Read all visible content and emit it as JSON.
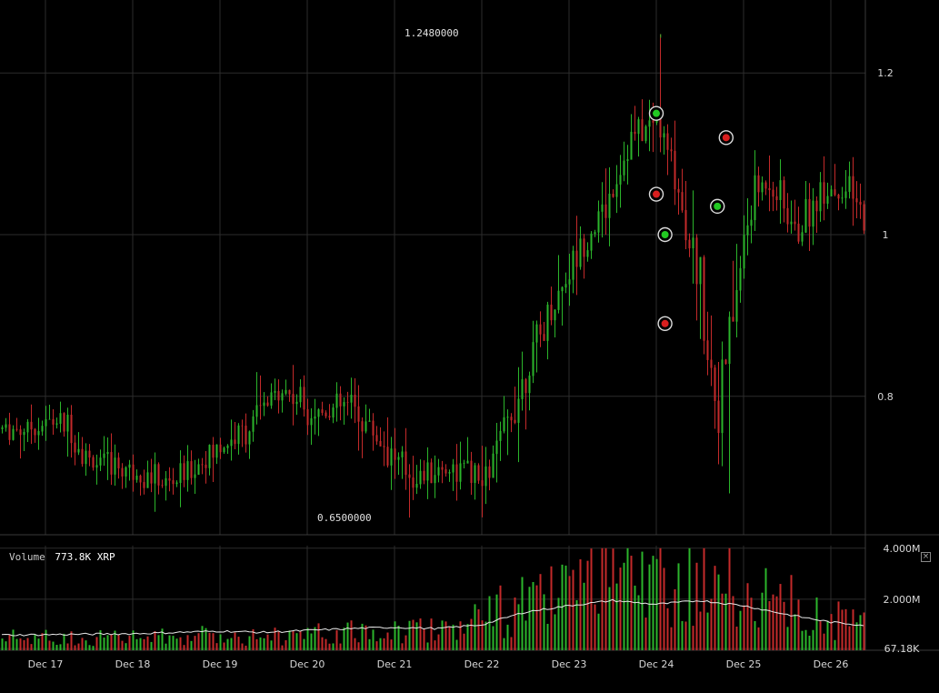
{
  "volume_panel": {
    "label": "Volume",
    "value": "773.8K",
    "unit": "XRP"
  },
  "annotations": {
    "high_label": "1.2480000",
    "low_label": "0.6500000"
  },
  "icons": {
    "volume_close": "close-icon"
  },
  "colors": {
    "up": "#2bb52b",
    "down": "#c42a2a",
    "grid": "#2c2c2c",
    "ma_line": "#e8e8e8",
    "marker_ring": "#dcdcdc"
  },
  "chart_data": {
    "type": "candlestick",
    "title": "",
    "xlabel": "",
    "ylabel": "",
    "x_ticks": [
      "Dec 17",
      "Dec 18",
      "Dec 19",
      "Dec 20",
      "Dec 21",
      "Dec 22",
      "Dec 23",
      "Dec 24",
      "Dec 25",
      "Dec 26"
    ],
    "price_ticks": [
      "1.2",
      "1",
      "0.8"
    ],
    "price_tick_values": [
      1.2,
      1.0,
      0.8
    ],
    "ylim": [
      0.6,
      1.26
    ],
    "volume_ticks": [
      "4.000M",
      "2.000M",
      "67.18K"
    ],
    "volume_tick_values": [
      4.0,
      2.0,
      0.06718
    ],
    "volume_ylim_millions": [
      0,
      4.1
    ],
    "high": 1.248,
    "low": 0.65,
    "series": [
      {
        "name": "price",
        "keypoints_day_value": [
          [
            -0.3,
            0.76
          ],
          [
            0.2,
            0.77
          ],
          [
            0.5,
            0.72
          ],
          [
            1.0,
            0.71
          ],
          [
            1.4,
            0.69
          ],
          [
            1.8,
            0.72
          ],
          [
            2.3,
            0.76
          ],
          [
            2.7,
            0.81
          ],
          [
            3.1,
            0.78
          ],
          [
            3.5,
            0.79
          ],
          [
            3.8,
            0.75
          ],
          [
            4.2,
            0.7
          ],
          [
            4.5,
            0.71
          ],
          [
            4.8,
            0.71
          ],
          [
            5.0,
            0.69
          ],
          [
            5.2,
            0.74
          ],
          [
            5.5,
            0.83
          ],
          [
            5.8,
            0.91
          ],
          [
            6.1,
            0.98
          ],
          [
            6.4,
            1.03
          ],
          [
            6.7,
            1.12
          ],
          [
            7.0,
            1.14
          ],
          [
            7.2,
            1.08
          ],
          [
            7.5,
            0.94
          ],
          [
            7.7,
            0.78
          ],
          [
            7.9,
            0.92
          ],
          [
            8.1,
            1.05
          ],
          [
            8.3,
            1.07
          ],
          [
            8.6,
            1.0
          ],
          [
            8.9,
            1.06
          ],
          [
            9.2,
            1.05
          ],
          [
            9.5,
            1.0
          ],
          [
            9.8,
            0.97
          ],
          [
            10.1,
            0.94
          ],
          [
            10.4,
            0.95
          ],
          [
            10.7,
            0.97
          ],
          [
            11.0,
            0.98
          ],
          [
            11.3,
            1.01
          ],
          [
            11.6,
            1.0
          ],
          [
            11.9,
            0.99
          ],
          [
            12.2,
            1.02
          ],
          [
            12.5,
            1.03
          ],
          [
            12.8,
            1.01
          ],
          [
            13.0,
            1.0
          ]
        ]
      },
      {
        "name": "volume",
        "keypoints_day_millions": [
          [
            -0.3,
            0.5
          ],
          [
            1.0,
            0.5
          ],
          [
            2.0,
            0.6
          ],
          [
            3.0,
            0.6
          ],
          [
            4.0,
            0.8
          ],
          [
            4.5,
            0.9
          ],
          [
            5.0,
            1.3
          ],
          [
            5.5,
            1.8
          ],
          [
            6.0,
            2.2
          ],
          [
            6.5,
            2.6
          ],
          [
            7.0,
            2.8
          ],
          [
            7.3,
            3.0
          ],
          [
            7.6,
            2.6
          ],
          [
            8.0,
            2.3
          ],
          [
            8.5,
            1.8
          ],
          [
            9.0,
            1.2
          ],
          [
            9.5,
            0.9
          ],
          [
            10.0,
            0.8
          ],
          [
            10.5,
            0.7
          ],
          [
            11.0,
            0.6
          ],
          [
            11.5,
            0.5
          ],
          [
            12.0,
            0.4
          ],
          [
            12.5,
            0.35
          ],
          [
            13.0,
            0.3
          ]
        ]
      },
      {
        "name": "volume_ma",
        "keypoints_day_millions": [
          [
            -0.3,
            0.6
          ],
          [
            1.0,
            0.65
          ],
          [
            2.0,
            0.75
          ],
          [
            2.5,
            0.7
          ],
          [
            3.5,
            0.85
          ],
          [
            4.0,
            0.9
          ],
          [
            4.5,
            0.85
          ],
          [
            5.0,
            1.0
          ],
          [
            5.5,
            1.5
          ],
          [
            6.0,
            1.75
          ],
          [
            6.5,
            1.95
          ],
          [
            7.0,
            1.8
          ],
          [
            7.5,
            1.95
          ],
          [
            8.0,
            1.75
          ],
          [
            8.5,
            1.4
          ],
          [
            9.0,
            1.1
          ],
          [
            9.5,
            0.95
          ],
          [
            10.0,
            0.8
          ],
          [
            10.5,
            0.7
          ],
          [
            11.0,
            0.6
          ],
          [
            11.5,
            0.5
          ],
          [
            12.0,
            0.4
          ],
          [
            12.5,
            0.35
          ],
          [
            13.0,
            0.3
          ]
        ]
      }
    ],
    "trade_markers": [
      {
        "day": 7.0,
        "price": 1.15,
        "side": "buy"
      },
      {
        "day": 7.0,
        "price": 1.05,
        "side": "sell"
      },
      {
        "day": 7.1,
        "price": 1.0,
        "side": "buy"
      },
      {
        "day": 7.1,
        "price": 0.89,
        "side": "sell"
      },
      {
        "day": 7.7,
        "price": 1.035,
        "side": "buy"
      },
      {
        "day": 7.8,
        "price": 1.12,
        "side": "sell"
      }
    ]
  }
}
